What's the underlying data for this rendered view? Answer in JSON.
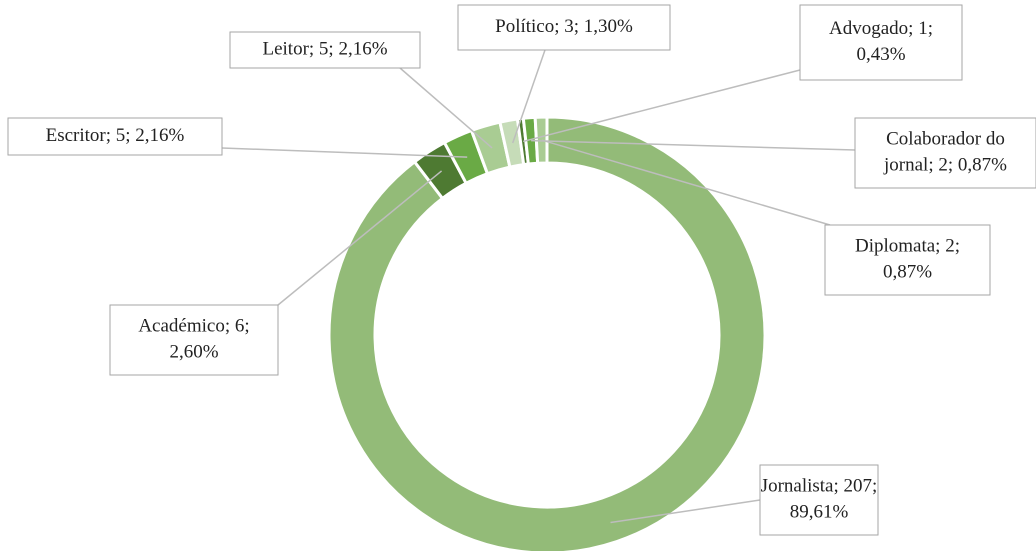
{
  "chart_data": {
    "type": "donut",
    "values": [
      207,
      6,
      5,
      5,
      3,
      1,
      2,
      2
    ],
    "value_labels": [
      [
        "Jornalista; 207;",
        "89,61%"
      ],
      [
        "Académico; 6;",
        "2,60%"
      ],
      [
        "Escritor; 5; 2,16%"
      ],
      [
        "Leitor; 5; 2,16%"
      ],
      [
        "Político; 3; 1,30%"
      ],
      [
        "Advogado; 1;",
        "0,43%"
      ],
      [
        "Colaborador do",
        "jornal; 2; 0,87%"
      ],
      [
        "Diplomata; 2;",
        "0,87%"
      ]
    ],
    "colors": [
      "#93bb78",
      "#4e7a32",
      "#6aaa45",
      "#a9cc93",
      "#c6dcb8",
      "#4e7a32",
      "#6aaa45",
      "#a9cc93"
    ]
  }
}
